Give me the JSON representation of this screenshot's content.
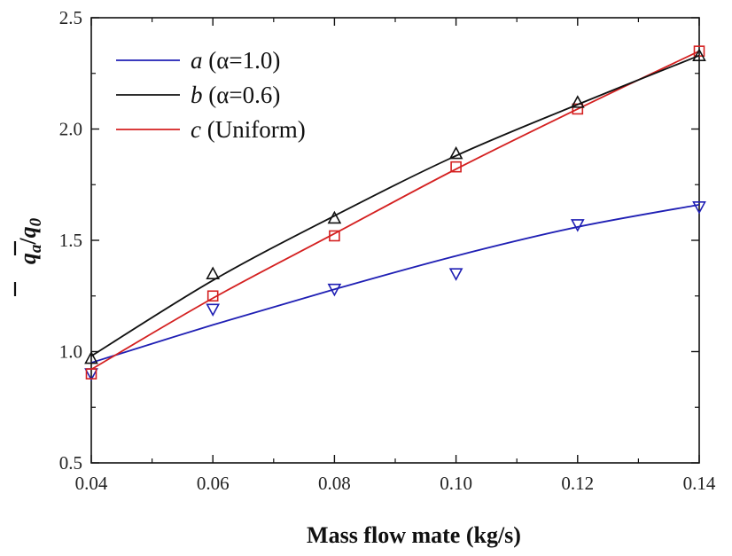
{
  "chart_data": {
    "type": "line",
    "xlabel": "Mass flow mate (kg/s)",
    "ylabel": {
      "num_var": "q",
      "num_sub": "a",
      "slash": "/",
      "den_var": "q",
      "den_sub": "0"
    },
    "xlim": [
      0.04,
      0.14
    ],
    "ylim": [
      0.5,
      2.5
    ],
    "x_ticks": [
      "0.04",
      "0.06",
      "0.08",
      "0.10",
      "0.12",
      "0.14"
    ],
    "y_ticks": [
      "0.5",
      "1.0",
      "1.5",
      "2.0",
      "2.5"
    ],
    "grid": false,
    "legend_position": "top-left",
    "series": [
      {
        "name": "a (α=1.0)",
        "legend_letter": "a",
        "legend_rest": " (α=1.0)",
        "color": "#1f1fb4",
        "marker": "triangle-down",
        "points": {
          "x": [
            0.04,
            0.06,
            0.08,
            0.1,
            0.12,
            0.14
          ],
          "y": [
            0.9,
            1.19,
            1.28,
            1.35,
            1.57,
            1.65
          ]
        },
        "fit": {
          "x": [
            0.04,
            0.06,
            0.08,
            0.1,
            0.12,
            0.14
          ],
          "y": [
            0.95,
            1.12,
            1.28,
            1.43,
            1.56,
            1.66
          ]
        }
      },
      {
        "name": "b (α=0.6)",
        "legend_letter": "b",
        "legend_rest": " (α=0.6)",
        "color": "#111111",
        "marker": "triangle-up",
        "points": {
          "x": [
            0.04,
            0.06,
            0.08,
            0.1,
            0.12,
            0.14
          ],
          "y": [
            0.97,
            1.35,
            1.6,
            1.89,
            2.12,
            2.33
          ]
        },
        "fit": {
          "x": [
            0.04,
            0.06,
            0.08,
            0.1,
            0.12,
            0.14
          ],
          "y": [
            0.98,
            1.32,
            1.61,
            1.88,
            2.11,
            2.33
          ]
        }
      },
      {
        "name": "c (Uniform)",
        "legend_letter": "c",
        "legend_rest": " (Uniform)",
        "color": "#d42020",
        "marker": "square",
        "points": {
          "x": [
            0.04,
            0.06,
            0.08,
            0.1,
            0.12,
            0.14
          ],
          "y": [
            0.9,
            1.25,
            1.52,
            1.83,
            2.09,
            2.35
          ]
        },
        "fit": {
          "x": [
            0.04,
            0.06,
            0.08,
            0.1,
            0.12,
            0.14
          ],
          "y": [
            0.92,
            1.24,
            1.53,
            1.82,
            2.09,
            2.35
          ]
        }
      }
    ]
  }
}
